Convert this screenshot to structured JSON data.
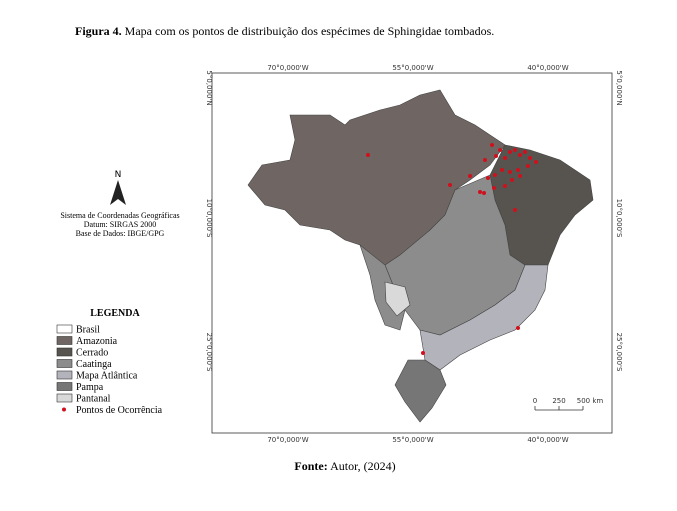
{
  "caption": {
    "label": "Figura 4.",
    "text": " Mapa com os pontos de distribuição dos espécimes de Sphingidae tombados."
  },
  "map": {
    "longitude_labels": [
      "70°0,000'W",
      "55°0,000'W",
      "40°0,000'W"
    ],
    "latitude_labels": [
      "5°0,000'N",
      "10°0,000'S",
      "25°0,000'S"
    ],
    "north": "N",
    "crs": [
      "Sistema de Coordenadas Geográficas",
      "Datum: SIRGAS  2000",
      "Base de Dados: IBGE/GPG"
    ],
    "scale": [
      "0",
      "250",
      "500 km"
    ]
  },
  "legend": {
    "title": "LEGENDA",
    "items": [
      {
        "label": "Brasil",
        "color": "#ffffff"
      },
      {
        "label": "Amazonia",
        "color": "#6f6663"
      },
      {
        "label": "Cerrado",
        "color": "#57544f"
      },
      {
        "label": "Caatinga",
        "color": "#8c8c8c"
      },
      {
        "label": "Mapa Atlântica",
        "color": "#b3b3bb"
      },
      {
        "label": "Pampa",
        "color": "#767676"
      },
      {
        "label": "Pantanal",
        "color": "#d9d9d9"
      },
      {
        "label": "Pontos de Ocorrência",
        "color": "#d0101c"
      }
    ]
  },
  "source": {
    "label": "Fonte:",
    "text": " Autor, (2024)"
  }
}
